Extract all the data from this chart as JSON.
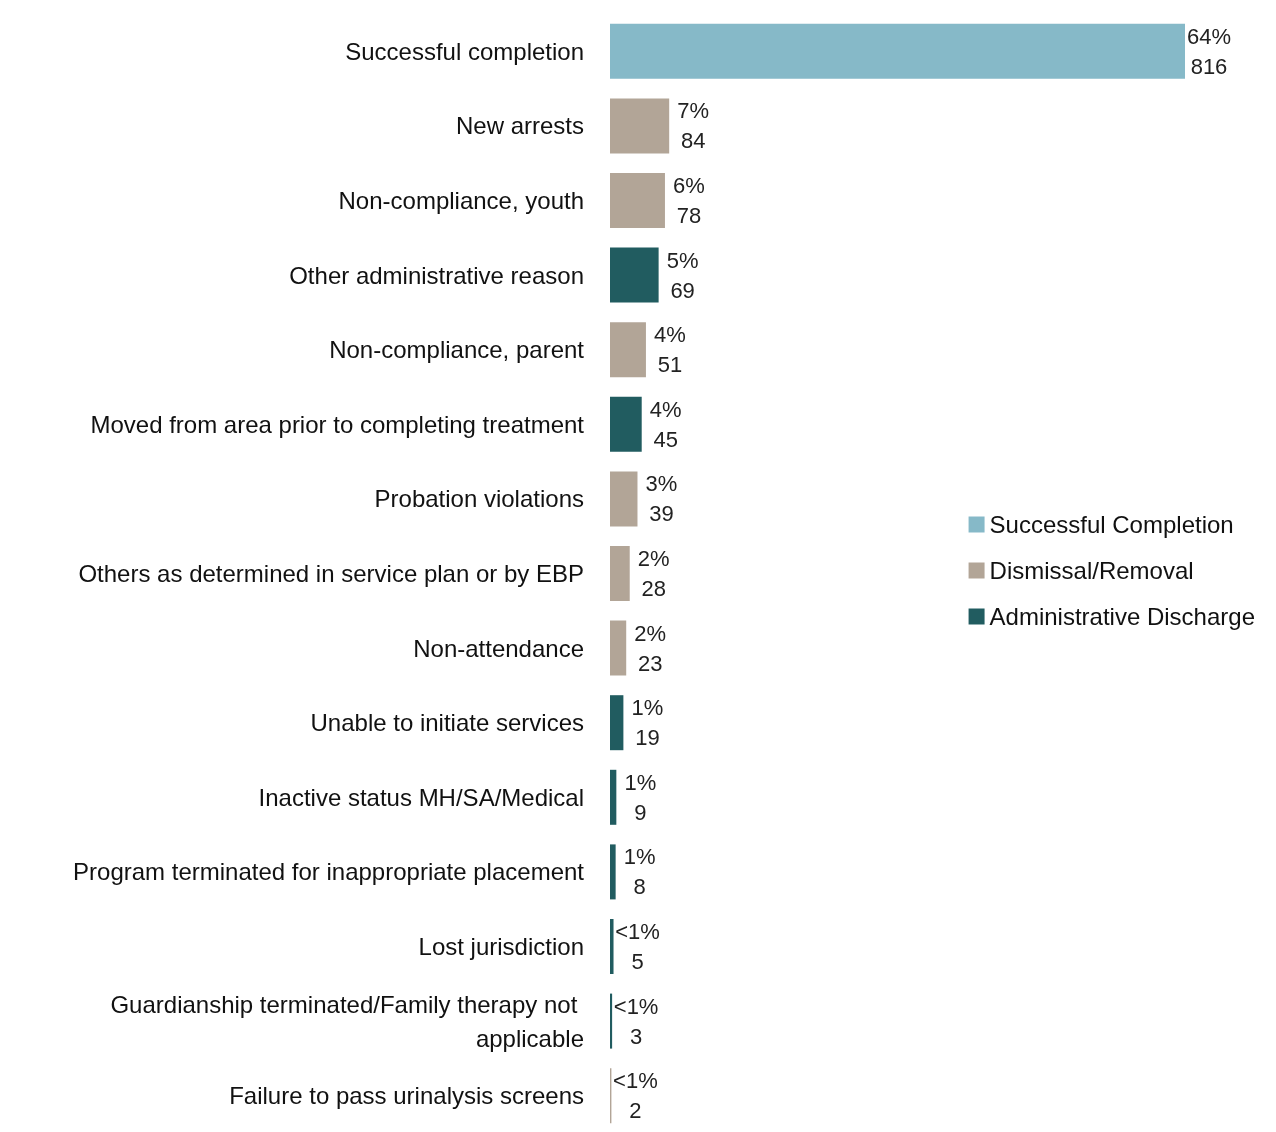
{
  "chart_data": {
    "type": "bar",
    "orientation": "horizontal",
    "stacked": true,
    "legend": "right",
    "tick_labels": "y",
    "categories": [
      "Successful completion",
      "New arrests",
      "Non-compliance, youth",
      "Other administrative reason",
      "Non-compliance, parent",
      "Moved from area prior to completing treatment",
      "Probation violations",
      "Others as determined in service plan or by EBP",
      "Non-attendance",
      "Unable to initiate services",
      "Inactive status MH/SA/Medical",
      "Program terminated for inappropriate placement",
      "Lost jurisdiction",
      "Guardianship terminated/Family therapy not applicable",
      "Failure to pass urinalysis screens"
    ],
    "series": [
      {
        "name": "Successful Completion",
        "color": "#86b9c8",
        "values": [
          816,
          null,
          null,
          null,
          null,
          null,
          null,
          null,
          null,
          null,
          null,
          null,
          null,
          null,
          null
        ],
        "value_labels": [
          "64%\n816",
          null,
          null,
          null,
          null,
          null,
          null,
          null,
          null,
          null,
          null,
          null,
          null,
          null,
          null
        ]
      },
      {
        "name": "Dismissal/Removal",
        "color": "#b2a597",
        "values": [
          null,
          84,
          78,
          null,
          51,
          null,
          39,
          28,
          23,
          null,
          null,
          null,
          null,
          null,
          2
        ],
        "value_labels": [
          null,
          "7%\n84",
          "6%\n78",
          null,
          "4%\n51",
          null,
          "3%\n39",
          "2%\n28",
          "2%\n23",
          null,
          null,
          null,
          null,
          null,
          "<1%\n2"
        ]
      },
      {
        "name": "Administrative Discharge",
        "color": "#215c60",
        "values": [
          null,
          null,
          null,
          69,
          null,
          45,
          null,
          null,
          null,
          19,
          9,
          8,
          5,
          3,
          null
        ],
        "value_labels": [
          null,
          null,
          null,
          "5%\n69",
          null,
          "4%\n45",
          null,
          null,
          null,
          "1%\n19",
          "1%\n9",
          "1%\n8",
          "<1%\n5",
          "<1%\n3",
          null
        ]
      }
    ]
  }
}
